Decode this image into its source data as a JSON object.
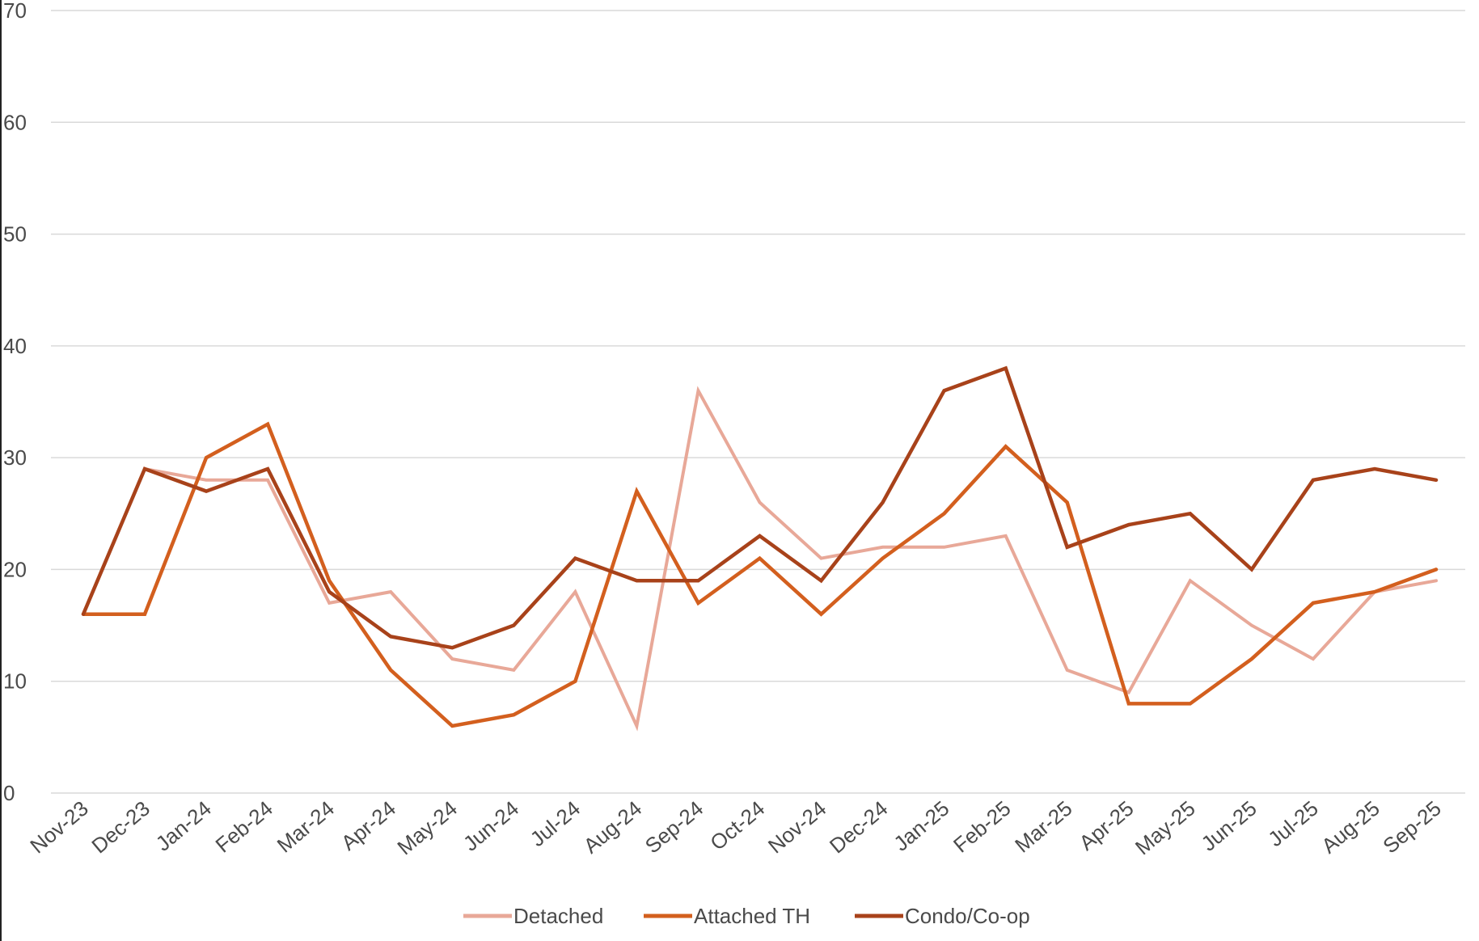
{
  "chart_data": {
    "type": "line",
    "title": "",
    "xlabel": "",
    "ylabel": "",
    "ylim": [
      0,
      70
    ],
    "yticks": [
      0,
      10,
      20,
      30,
      40,
      50,
      60,
      70
    ],
    "grid": true,
    "legend_position": "bottom",
    "categories": [
      "Nov-23",
      "Dec-23",
      "Jan-24",
      "Feb-24",
      "Mar-24",
      "Apr-24",
      "May-24",
      "Jun-24",
      "Jul-24",
      "Aug-24",
      "Sep-24",
      "Oct-24",
      "Nov-24",
      "Dec-24",
      "Jan-25",
      "Feb-25",
      "Mar-25",
      "Apr-25",
      "May-25",
      "Jun-25",
      "Jul-25",
      "Aug-25",
      "Sep-25"
    ],
    "series": [
      {
        "name": "Detached",
        "color": "#e8a898",
        "values": [
          16,
          29,
          28,
          28,
          17,
          18,
          12,
          11,
          18,
          6,
          36,
          26,
          21,
          22,
          22,
          23,
          11,
          9,
          19,
          15,
          12,
          18,
          19
        ]
      },
      {
        "name": "Attached TH",
        "color": "#d35f1e",
        "values": [
          16,
          16,
          30,
          33,
          19,
          11,
          6,
          7,
          10,
          27,
          17,
          21,
          16,
          21,
          25,
          31,
          26,
          8,
          8,
          12,
          17,
          18,
          20
        ]
      },
      {
        "name": "Condo/Co-op",
        "color": "#a8421a",
        "values": [
          16,
          29,
          27,
          29,
          18,
          14,
          13,
          15,
          21,
          19,
          19,
          23,
          19,
          26,
          36,
          38,
          22,
          24,
          25,
          20,
          28,
          29,
          28
        ]
      }
    ]
  }
}
